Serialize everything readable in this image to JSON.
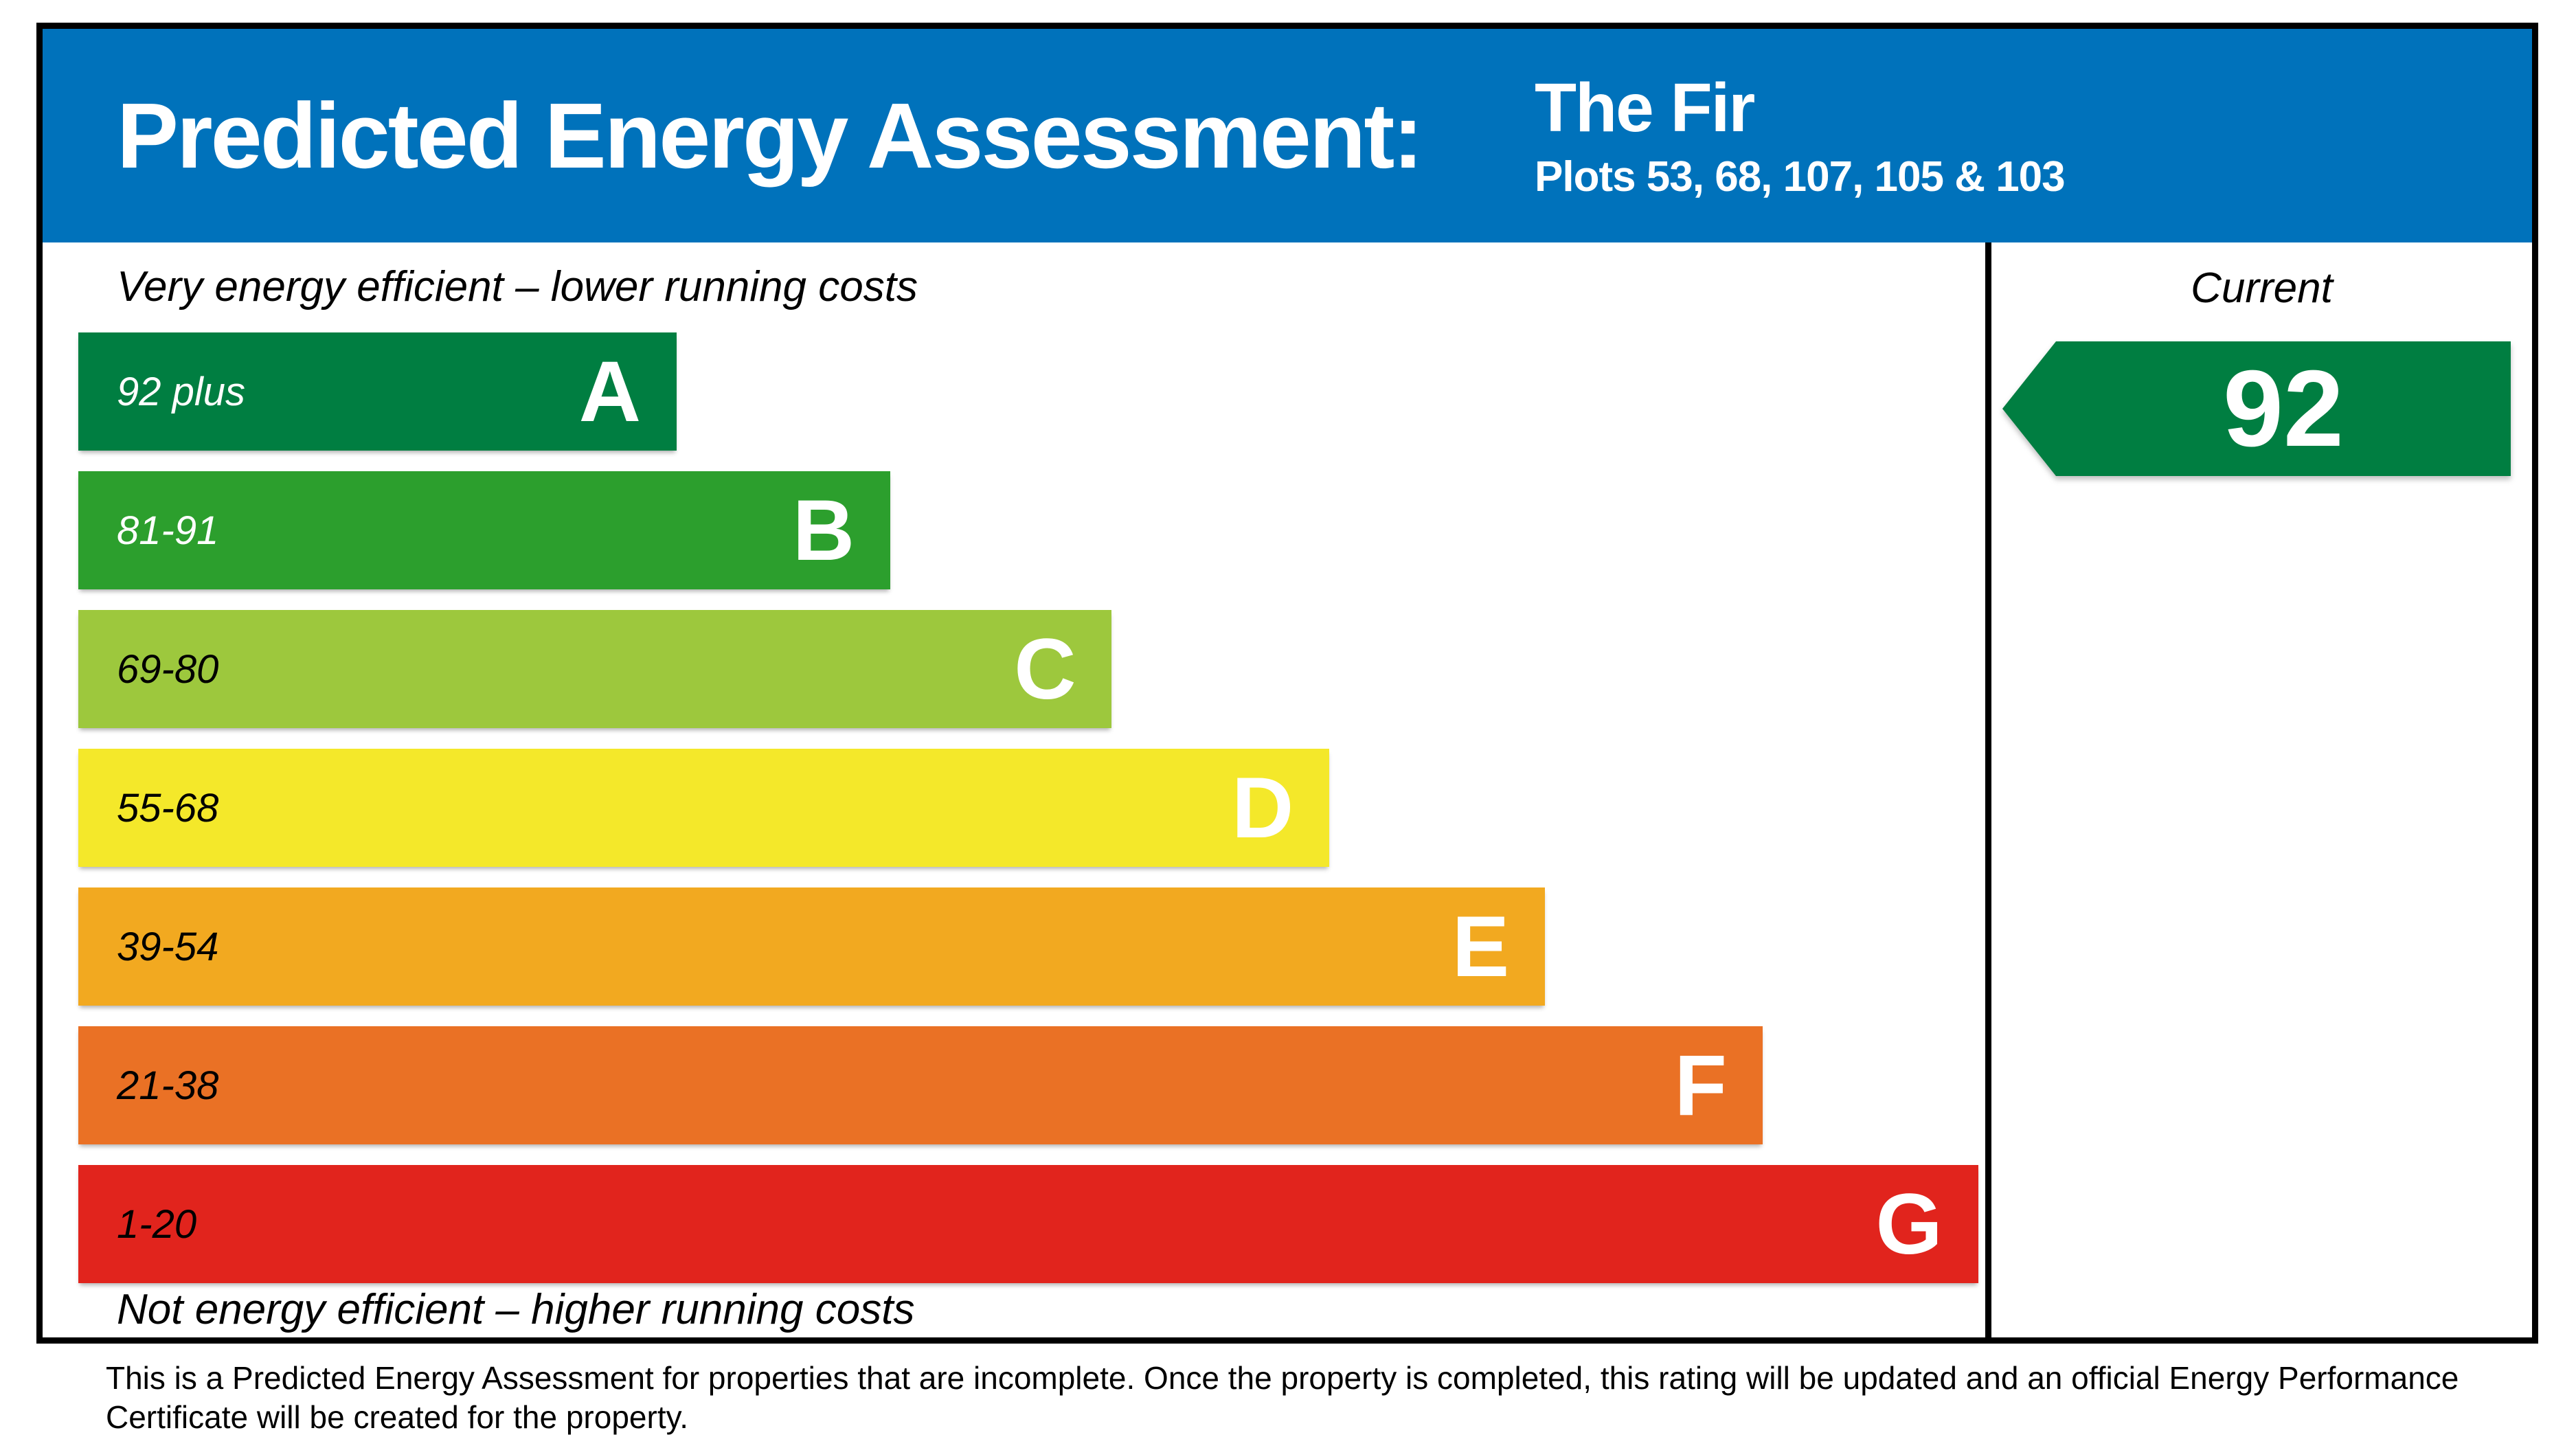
{
  "header": {
    "title": "Predicted Energy Assessment:",
    "property_name": "The Fir",
    "property_plots": "Plots 53, 68, 107, 105 & 103",
    "background": "#0072bb"
  },
  "labels": {
    "top": "Very energy efficient – lower running costs",
    "bottom": "Not energy efficient – higher running costs",
    "current_column": "Current"
  },
  "chart_data": {
    "type": "bar",
    "title": "Predicted Energy Assessment",
    "orientation": "horizontal",
    "bands": [
      {
        "range": "92 plus",
        "letter": "A",
        "color": "#007e41",
        "text_color": "#ffffff",
        "width_pct": 30.8
      },
      {
        "range": "81-91",
        "letter": "B",
        "color": "#2c9f2d",
        "text_color": "#ffffff",
        "width_pct": 41.8
      },
      {
        "range": "69-80",
        "letter": "C",
        "color": "#9dc83d",
        "text_color": "#000000",
        "width_pct": 53.2
      },
      {
        "range": "55-68",
        "letter": "D",
        "color": "#f4e82a",
        "text_color": "#000000",
        "width_pct": 64.4
      },
      {
        "range": "39-54",
        "letter": "E",
        "color": "#f2a920",
        "text_color": "#000000",
        "width_pct": 75.5
      },
      {
        "range": "21-38",
        "letter": "F",
        "color": "#ea7125",
        "text_color": "#000000",
        "width_pct": 86.7
      },
      {
        "range": "1-20",
        "letter": "G",
        "color": "#e1241d",
        "text_color": "#000000",
        "width_pct": 97.8
      }
    ],
    "current": {
      "value": "92",
      "band": "A",
      "arrow_color": "#007e41"
    }
  },
  "footer": {
    "line1": "This is a Predicted Energy Assessment for properties that are incomplete. Once the property is completed, this rating will be updated and an official Energy Performance",
    "line2": "Certificate will be created for the property."
  }
}
